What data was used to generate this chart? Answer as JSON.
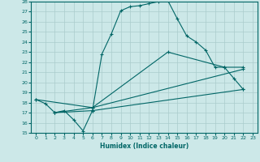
{
  "xlabel": "Humidex (Indice chaleur)",
  "bg_color": "#cce8e8",
  "grid_color": "#aacccc",
  "line_color": "#006666",
  "xlim": [
    -0.5,
    23.5
  ],
  "ylim": [
    15,
    28
  ],
  "xticks": [
    0,
    1,
    2,
    3,
    4,
    5,
    6,
    7,
    8,
    9,
    10,
    11,
    12,
    13,
    14,
    15,
    16,
    17,
    18,
    19,
    20,
    21,
    22,
    23
  ],
  "yticks": [
    15,
    16,
    17,
    18,
    19,
    20,
    21,
    22,
    23,
    24,
    25,
    26,
    27,
    28
  ],
  "lines": [
    {
      "x": [
        0,
        1,
        2,
        3,
        4,
        5,
        6,
        7,
        8,
        9,
        10,
        11,
        12,
        13,
        14,
        15,
        16,
        17,
        18,
        19,
        20,
        21,
        22
      ],
      "y": [
        18.3,
        17.9,
        17.0,
        17.2,
        16.3,
        15.2,
        17.2,
        22.8,
        24.8,
        27.1,
        27.5,
        27.6,
        27.8,
        28.0,
        28.1,
        26.3,
        24.6,
        24.0,
        23.2,
        21.5,
        21.5,
        20.4,
        19.3
      ]
    },
    {
      "x": [
        0,
        6,
        14,
        20,
        22
      ],
      "y": [
        18.3,
        17.5,
        23.0,
        21.5,
        21.5
      ]
    },
    {
      "x": [
        2,
        6,
        22
      ],
      "y": [
        17.0,
        17.5,
        21.3
      ]
    },
    {
      "x": [
        2,
        6,
        22
      ],
      "y": [
        17.0,
        17.2,
        19.3
      ]
    }
  ]
}
